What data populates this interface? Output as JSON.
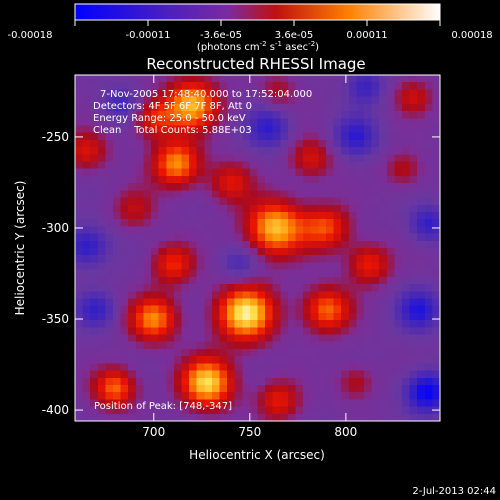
{
  "colorbar": {
    "ticks": [
      "-0.00018",
      "-0.00011",
      "-3.6e-05",
      "3.6e-05",
      "0.00011",
      "0.00018"
    ],
    "units_main": "(photons cm",
    "units_sup1": "-2",
    "units_mid": " s",
    "units_sup2": "-1",
    "units_end": " asec",
    "units_sup3": "-2",
    "units_close": ")"
  },
  "overlay": {
    "line1": "7-Nov-2005 17:48:40.000 to 17:52:04.000",
    "line2": "Detectors: 4F 5F 6F 7F 8F, Att 0",
    "line3": "Energy Range: 25.0 - 50.0 keV",
    "line4": "Clean    Total Counts: 5.88E+03",
    "peak": "Position of Peak: [748,-347]"
  },
  "footer": {
    "timestamp": "2-Jul-2013 02:44"
  },
  "chart_data": {
    "type": "heatmap",
    "title": "Reconstructed RHESSI Image",
    "xlabel": "Heliocentric X (arcsec)",
    "ylabel": "Heliocentric Y (arcsec)",
    "xlim": [
      659,
      849
    ],
    "ylim": [
      -406,
      -216
    ],
    "x_ticks": [
      700,
      750,
      800
    ],
    "y_ticks": [
      -250,
      -300,
      -350,
      -400
    ],
    "color_range": [
      -0.00018,
      0.00018
    ],
    "colormap": [
      "#0000ff",
      "#5a2aa8",
      "#7b3aa0",
      "#b0101a",
      "#ff2000",
      "#ff9000",
      "#ffffff"
    ],
    "peak_position": [
      748,
      -347
    ],
    "blobs": [
      {
        "x": 748,
        "y": -347,
        "a": 1.0,
        "s": 11
      },
      {
        "x": 720,
        "y": -232,
        "a": 0.85,
        "s": 10
      },
      {
        "x": 712,
        "y": -265,
        "a": 0.8,
        "s": 9
      },
      {
        "x": 763,
        "y": -300,
        "a": 0.9,
        "s": 11
      },
      {
        "x": 728,
        "y": -385,
        "a": 0.95,
        "s": 10
      },
      {
        "x": 700,
        "y": -350,
        "a": 0.75,
        "s": 9
      },
      {
        "x": 790,
        "y": -300,
        "a": 0.6,
        "s": 9
      },
      {
        "x": 782,
        "y": -262,
        "a": 0.45,
        "s": 8
      },
      {
        "x": 680,
        "y": -388,
        "a": 0.7,
        "s": 8
      },
      {
        "x": 710,
        "y": -320,
        "a": 0.55,
        "s": 8
      },
      {
        "x": 790,
        "y": -345,
        "a": 0.7,
        "s": 9
      },
      {
        "x": 812,
        "y": -320,
        "a": 0.55,
        "s": 8
      },
      {
        "x": 665,
        "y": -258,
        "a": 0.45,
        "s": 8
      },
      {
        "x": 740,
        "y": -275,
        "a": 0.45,
        "s": 8
      },
      {
        "x": 835,
        "y": -228,
        "a": 0.4,
        "s": 7
      },
      {
        "x": 830,
        "y": -268,
        "a": 0.35,
        "s": 7
      },
      {
        "x": 765,
        "y": -395,
        "a": 0.5,
        "s": 8
      },
      {
        "x": 690,
        "y": -290,
        "a": 0.35,
        "s": 8
      },
      {
        "x": 765,
        "y": -225,
        "a": 0.3,
        "s": 7
      },
      {
        "x": 805,
        "y": -385,
        "a": 0.35,
        "s": 7
      },
      {
        "x": 700,
        "y": -240,
        "a": 0.5,
        "s": 8
      },
      {
        "x": 665,
        "y": -310,
        "a": -0.5,
        "s": 8
      },
      {
        "x": 842,
        "y": -390,
        "a": -0.7,
        "s": 8
      },
      {
        "x": 838,
        "y": -345,
        "a": -0.5,
        "s": 8
      },
      {
        "x": 760,
        "y": -245,
        "a": -0.45,
        "s": 8
      },
      {
        "x": 805,
        "y": -250,
        "a": -0.45,
        "s": 8
      },
      {
        "x": 745,
        "y": -320,
        "a": -0.3,
        "s": 7
      },
      {
        "x": 670,
        "y": -345,
        "a": -0.4,
        "s": 7
      },
      {
        "x": 810,
        "y": -222,
        "a": -0.4,
        "s": 7
      },
      {
        "x": 843,
        "y": -298,
        "a": -0.45,
        "s": 7
      },
      {
        "x": 683,
        "y": -232,
        "a": -0.35,
        "s": 7
      }
    ]
  }
}
